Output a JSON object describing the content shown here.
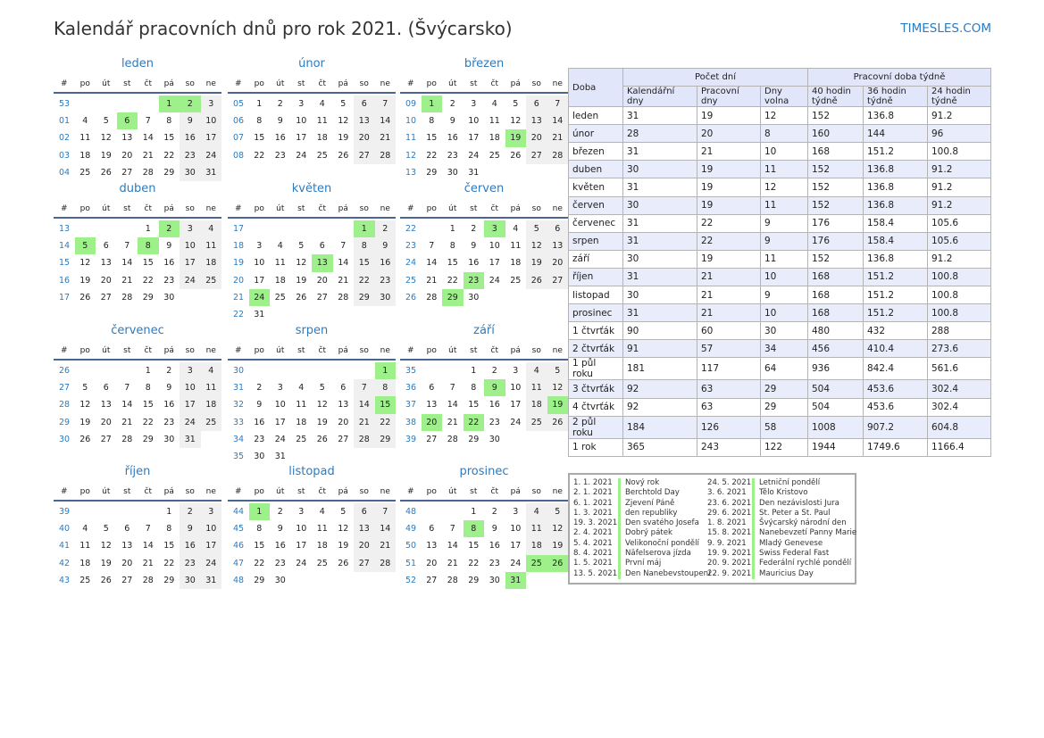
{
  "title": "Kalendář pracovních dnů pro rok 2021. (Švýcarsko)",
  "brand": "TIMESLES.COM",
  "weekday_headers": [
    "#",
    "po",
    "út",
    "st",
    "čt",
    "pá",
    "so",
    "ne"
  ],
  "months": [
    {
      "name": "leden",
      "offset": 4,
      "days": 31,
      "weeks": [
        "53",
        "01",
        "02",
        "03",
        "04"
      ],
      "holidays": [
        1,
        2,
        6
      ]
    },
    {
      "name": "únor",
      "offset": 0,
      "days": 28,
      "weeks": [
        "05",
        "06",
        "07",
        "08"
      ],
      "holidays": []
    },
    {
      "name": "březen",
      "offset": 0,
      "days": 31,
      "weeks": [
        "09",
        "10",
        "11",
        "12",
        "13"
      ],
      "holidays": [
        1,
        19
      ]
    },
    {
      "name": "duben",
      "offset": 3,
      "days": 30,
      "weeks": [
        "13",
        "14",
        "15",
        "16",
        "17"
      ],
      "holidays": [
        2,
        5,
        8
      ]
    },
    {
      "name": "květen",
      "offset": 5,
      "days": 31,
      "weeks": [
        "17",
        "18",
        "19",
        "20",
        "21",
        "22"
      ],
      "holidays": [
        1,
        13,
        24
      ]
    },
    {
      "name": "červen",
      "offset": 1,
      "days": 30,
      "weeks": [
        "22",
        "23",
        "24",
        "25",
        "26"
      ],
      "holidays": [
        3,
        23,
        29
      ]
    },
    {
      "name": "červenec",
      "offset": 3,
      "days": 31,
      "weeks": [
        "26",
        "27",
        "28",
        "29",
        "30"
      ],
      "holidays": []
    },
    {
      "name": "srpen",
      "offset": 6,
      "days": 31,
      "weeks": [
        "30",
        "31",
        "32",
        "33",
        "34",
        "35"
      ],
      "holidays": [
        1,
        15
      ]
    },
    {
      "name": "září",
      "offset": 2,
      "days": 30,
      "weeks": [
        "35",
        "36",
        "37",
        "38",
        "39"
      ],
      "holidays": [
        9,
        19,
        20,
        22
      ]
    },
    {
      "name": "říjen",
      "offset": 4,
      "days": 31,
      "weeks": [
        "39",
        "40",
        "41",
        "42",
        "43"
      ],
      "holidays": []
    },
    {
      "name": "listopad",
      "offset": 0,
      "days": 30,
      "weeks": [
        "44",
        "45",
        "46",
        "47",
        "48"
      ],
      "holidays": [
        1
      ]
    },
    {
      "name": "prosinec",
      "offset": 2,
      "days": 31,
      "weeks": [
        "48",
        "49",
        "50",
        "51",
        "52"
      ],
      "holidays": [
        8,
        25,
        26,
        31
      ]
    }
  ],
  "table": {
    "col_doba": "Doba",
    "group_days": "Počet dní",
    "group_hours": "Pracovní doba týdně",
    "sub": [
      "Kalendářní dny",
      "Pracovní dny",
      "Dny volna",
      "40 hodin týdně",
      "36 hodin týdně",
      "24 hodin týdně"
    ],
    "rows": [
      [
        "leden",
        "31",
        "19",
        "12",
        "152",
        "136.8",
        "91.2"
      ],
      [
        "únor",
        "28",
        "20",
        "8",
        "160",
        "144",
        "96"
      ],
      [
        "březen",
        "31",
        "21",
        "10",
        "168",
        "151.2",
        "100.8"
      ],
      [
        "duben",
        "30",
        "19",
        "11",
        "152",
        "136.8",
        "91.2"
      ],
      [
        "květen",
        "31",
        "19",
        "12",
        "152",
        "136.8",
        "91.2"
      ],
      [
        "červen",
        "30",
        "19",
        "11",
        "152",
        "136.8",
        "91.2"
      ],
      [
        "červenec",
        "31",
        "22",
        "9",
        "176",
        "158.4",
        "105.6"
      ],
      [
        "srpen",
        "31",
        "22",
        "9",
        "176",
        "158.4",
        "105.6"
      ],
      [
        "září",
        "30",
        "19",
        "11",
        "152",
        "136.8",
        "91.2"
      ],
      [
        "říjen",
        "31",
        "21",
        "10",
        "168",
        "151.2",
        "100.8"
      ],
      [
        "listopad",
        "30",
        "21",
        "9",
        "168",
        "151.2",
        "100.8"
      ],
      [
        "prosinec",
        "31",
        "21",
        "10",
        "168",
        "151.2",
        "100.8"
      ],
      [
        "1 čtvrťák",
        "90",
        "60",
        "30",
        "480",
        "432",
        "288"
      ],
      [
        "2 čtvrťák",
        "91",
        "57",
        "34",
        "456",
        "410.4",
        "273.6"
      ],
      [
        "1 půl roku",
        "181",
        "117",
        "64",
        "936",
        "842.4",
        "561.6"
      ],
      [
        "3 čtvrťák",
        "92",
        "63",
        "29",
        "504",
        "453.6",
        "302.4"
      ],
      [
        "4 čtvrťák",
        "92",
        "63",
        "29",
        "504",
        "453.6",
        "302.4"
      ],
      [
        "2 půl roku",
        "184",
        "126",
        "58",
        "1008",
        "907.2",
        "604.8"
      ],
      [
        "1 rok",
        "365",
        "243",
        "122",
        "1944",
        "1749.6",
        "1166.4"
      ]
    ]
  },
  "holidays": [
    [
      "1. 1. 2021",
      "Nový rok",
      "24. 5. 2021",
      "Letniční pondělí"
    ],
    [
      "2. 1. 2021",
      "Berchtold Day",
      "3. 6. 2021",
      "Tělo Kristovo"
    ],
    [
      "6. 1. 2021",
      "Zjevení Páně",
      "23. 6. 2021",
      "Den nezávislosti Jura"
    ],
    [
      "1. 3. 2021",
      "den republiky",
      "29. 6. 2021",
      "St. Peter a St. Paul"
    ],
    [
      "19. 3. 2021",
      "Den svatého Josefa",
      "1. 8. 2021",
      "Švýcarský národní den"
    ],
    [
      "2. 4. 2021",
      "Dobrý pátek",
      "15. 8. 2021",
      "Nanebevzetí Panny Marie"
    ],
    [
      "5. 4. 2021",
      "Velikonoční pondělí",
      "9. 9. 2021",
      "Mladý Genevese"
    ],
    [
      "8. 4. 2021",
      "Näfelserova jízda",
      "19. 9. 2021",
      "Swiss Federal Fast"
    ],
    [
      "1. 5. 2021",
      "První máj",
      "20. 9. 2021",
      "Federální rychlé pondělí"
    ],
    [
      "13. 5. 2021",
      "Den Nanebevstoupení",
      "22. 9. 2021",
      "Mauricius Day"
    ]
  ],
  "colors": {
    "accent": "#2d7bbf",
    "holiday": "#9df08a",
    "weekend": "#f0f0f0",
    "row_alt": "#e8ecfb"
  }
}
